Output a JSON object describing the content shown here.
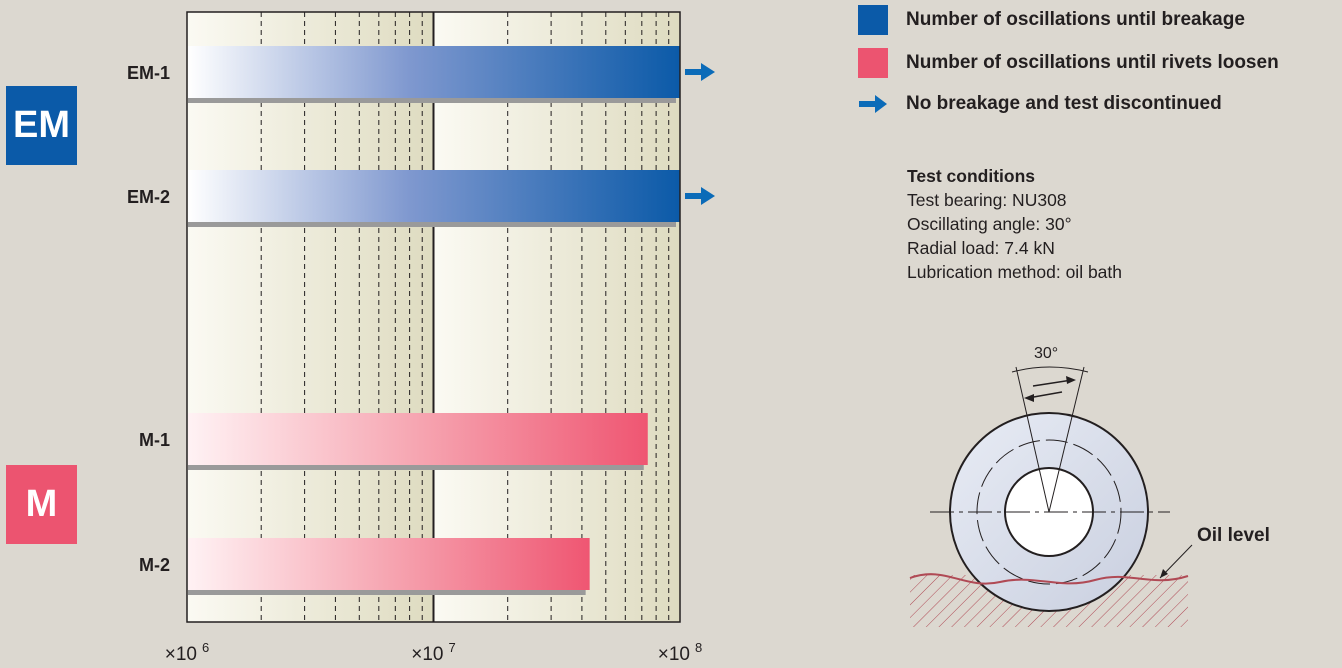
{
  "chart_data": {
    "type": "bar",
    "orientation": "horizontal",
    "x_scale": "log",
    "xlim": [
      1000000,
      100000000
    ],
    "x_tick_labels": [
      {
        "base": "×10",
        "exp": "6"
      },
      {
        "base": "×10",
        "exp": "7"
      },
      {
        "base": "×10",
        "exp": "8"
      }
    ],
    "categories": [
      "EM-1",
      "EM-2",
      "M-1",
      "M-2"
    ],
    "bars": [
      {
        "label": "EM-1",
        "value": 100000000,
        "series": "breakage",
        "discontinued": true
      },
      {
        "label": "EM-2",
        "value": 100000000,
        "series": "breakage",
        "discontinued": true
      },
      {
        "label": "M-1",
        "value": 74000000,
        "series": "rivets_loosen",
        "discontinued": false
      },
      {
        "label": "M-2",
        "value": 43000000,
        "series": "rivets_loosen",
        "discontinued": false
      }
    ],
    "groups": [
      {
        "label": "EM",
        "color": "#0b5aa8"
      },
      {
        "label": "M",
        "color": "#ec5470"
      }
    ],
    "grid": true
  },
  "legend": {
    "breakage": {
      "label": "Number of oscillations until breakage",
      "color": "#0b5aa8"
    },
    "rivets_loosen": {
      "label": "Number of oscillations until rivets loosen",
      "color": "#ec5470"
    },
    "discontinued": {
      "label": "No breakage and test discontinued",
      "color": "#0b6bb8"
    }
  },
  "conditions": {
    "title": "Test conditions",
    "lines": [
      "Test bearing: NU308",
      "Oscillating angle: 30°",
      "Radial load: 7.4 kN",
      "Lubrication method: oil bath"
    ]
  },
  "diagram": {
    "angle_label": "30°",
    "oil_level_label": "Oil level"
  }
}
